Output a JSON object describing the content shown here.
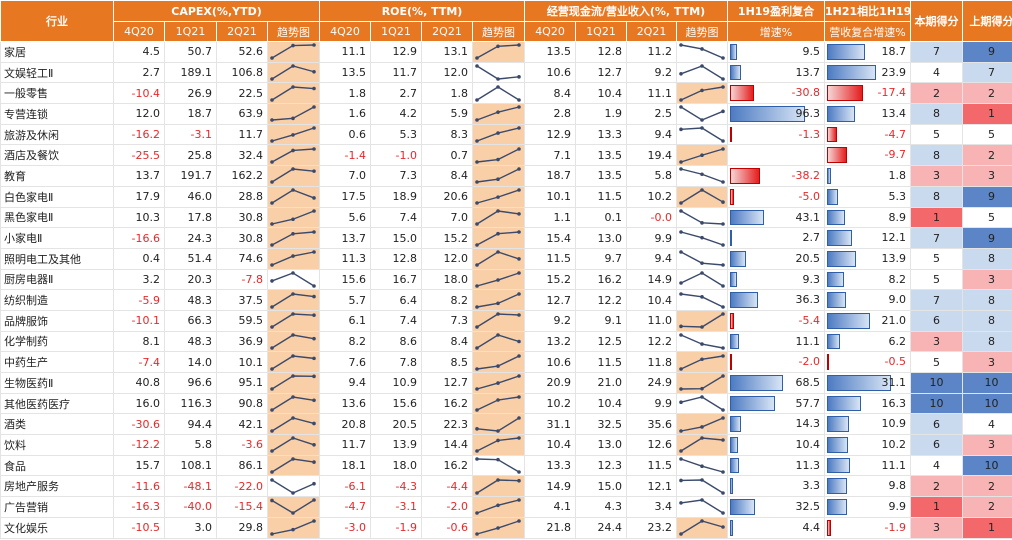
{
  "headers": {
    "industry": "行业",
    "capex": "CAPEX(%,YTD)",
    "roe": "ROE(%, TTM)",
    "cash": "经营现金流/营业收入(%, TTM)",
    "g19": [
      "1H19盈利复合",
      "增速%"
    ],
    "rev": [
      "1H21相比1H19",
      "营收复合增速%"
    ],
    "score_now": "本期得分",
    "score_prev": "上期得分",
    "periods_capex": [
      "4Q20",
      "1Q21",
      "2Q21",
      "趋势图"
    ],
    "periods_roe": [
      "4Q20",
      "1Q21",
      "2Q21",
      "趋势图"
    ],
    "periods_cash": [
      "4Q20",
      "1Q21",
      "2Q21",
      "趋势图"
    ]
  },
  "colors": {
    "header": "#E87722",
    "negative_text": "#e8282b",
    "spark_highlight": "#F9CFA8",
    "spark_line": "#3B4A6B",
    "bar_positive": "#4D7BC2",
    "bar_negative": "#E51E1E",
    "score_scale": [
      "#F2686B",
      "#F8B3B5",
      "#FFFFFF",
      "#C9D9EE",
      "#5B85C6"
    ]
  },
  "chart_data": {
    "type": "table",
    "columns": [
      "行业",
      "CAPEX 4Q20",
      "CAPEX 1Q21",
      "CAPEX 2Q21",
      "ROE 4Q20",
      "ROE 1Q21",
      "ROE 2Q21",
      "经营现金流/营收 4Q20",
      "经营现金流/营收 1Q21",
      "经营现金流/营收 2Q21",
      "1H19盈利复合增速%",
      "1H21相比1H19营收复合增速%",
      "本期得分",
      "上期得分"
    ],
    "rows": [
      {
        "name": "家居",
        "capex": [
          "4.5",
          "50.7",
          "52.6"
        ],
        "roe": [
          "11.1",
          "12.9",
          "13.1"
        ],
        "cash": [
          "13.5",
          "12.8",
          "11.2"
        ],
        "g19": "9.5",
        "rev": "18.7",
        "score_now": "7",
        "score_prev": "9"
      },
      {
        "name": "文娱轻工Ⅱ",
        "capex": [
          "2.7",
          "189.1",
          "106.8"
        ],
        "roe": [
          "13.5",
          "11.7",
          "12.0"
        ],
        "cash": [
          "10.6",
          "12.7",
          "9.2"
        ],
        "g19": "13.7",
        "rev": "23.9",
        "score_now": "4",
        "score_prev": "7"
      },
      {
        "name": "一般零售",
        "capex": [
          "-10.4",
          "26.9",
          "22.5"
        ],
        "roe": [
          "1.8",
          "2.7",
          "1.8"
        ],
        "cash": [
          "8.4",
          "10.4",
          "11.1"
        ],
        "g19": "-30.8",
        "rev": "-17.4",
        "score_now": "2",
        "score_prev": "2"
      },
      {
        "name": "专营连锁",
        "capex": [
          "12.0",
          "18.7",
          "63.9"
        ],
        "roe": [
          "1.6",
          "4.2",
          "5.9"
        ],
        "cash": [
          "2.8",
          "1.9",
          "2.5"
        ],
        "g19": "96.3",
        "rev": "13.4",
        "score_now": "8",
        "score_prev": "1"
      },
      {
        "name": "旅游及休闲",
        "capex": [
          "-16.2",
          "-3.1",
          "11.7"
        ],
        "roe": [
          "0.6",
          "5.3",
          "8.3"
        ],
        "cash": [
          "12.9",
          "13.3",
          "9.4"
        ],
        "g19": "-1.3",
        "rev": "-4.7",
        "score_now": "5",
        "score_prev": "5"
      },
      {
        "name": "酒店及餐饮",
        "capex": [
          "-25.5",
          "25.8",
          "32.4"
        ],
        "roe": [
          "-1.4",
          "-1.0",
          "0.7"
        ],
        "cash": [
          "7.1",
          "13.5",
          "19.4"
        ],
        "g19": "",
        "rev": "-9.7",
        "score_now": "8",
        "score_prev": "2"
      },
      {
        "name": "教育",
        "capex": [
          "13.7",
          "191.7",
          "162.2"
        ],
        "roe": [
          "7.0",
          "7.3",
          "8.4"
        ],
        "cash": [
          "18.7",
          "13.5",
          "5.8"
        ],
        "g19": "-38.2",
        "rev": "1.8",
        "score_now": "3",
        "score_prev": "3"
      },
      {
        "name": "白色家电Ⅱ",
        "capex": [
          "17.9",
          "46.0",
          "28.8"
        ],
        "roe": [
          "17.5",
          "18.9",
          "20.6"
        ],
        "cash": [
          "10.1",
          "11.5",
          "10.2"
        ],
        "g19": "-5.0",
        "rev": "5.3",
        "score_now": "8",
        "score_prev": "9"
      },
      {
        "name": "黑色家电Ⅱ",
        "capex": [
          "10.3",
          "17.8",
          "30.8"
        ],
        "roe": [
          "5.6",
          "7.4",
          "7.0"
        ],
        "cash": [
          "1.1",
          "0.1",
          "-0.0"
        ],
        "g19": "43.1",
        "rev": "8.9",
        "score_now": "1",
        "score_prev": "5"
      },
      {
        "name": "小家电Ⅱ",
        "capex": [
          "-16.6",
          "24.3",
          "30.8"
        ],
        "roe": [
          "13.7",
          "15.0",
          "15.2"
        ],
        "cash": [
          "15.4",
          "13.0",
          "9.9"
        ],
        "g19": "2.7",
        "rev": "12.1",
        "score_now": "7",
        "score_prev": "9"
      },
      {
        "name": "照明电工及其他",
        "capex": [
          "0.4",
          "51.4",
          "74.6"
        ],
        "roe": [
          "11.3",
          "12.8",
          "12.0"
        ],
        "cash": [
          "11.5",
          "9.7",
          "9.4"
        ],
        "g19": "20.5",
        "rev": "13.9",
        "score_now": "5",
        "score_prev": "8"
      },
      {
        "name": "厨房电器Ⅱ",
        "capex": [
          "3.2",
          "20.3",
          "-7.8"
        ],
        "roe": [
          "15.6",
          "16.7",
          "18.0"
        ],
        "cash": [
          "15.2",
          "16.2",
          "14.9"
        ],
        "g19": "9.3",
        "rev": "8.2",
        "score_now": "5",
        "score_prev": "3"
      },
      {
        "name": "纺织制造",
        "capex": [
          "-5.9",
          "48.3",
          "37.5"
        ],
        "roe": [
          "5.7",
          "6.4",
          "8.2"
        ],
        "cash": [
          "12.7",
          "12.2",
          "10.4"
        ],
        "g19": "36.3",
        "rev": "9.0",
        "score_now": "7",
        "score_prev": "8"
      },
      {
        "name": "品牌服饰",
        "capex": [
          "-10.1",
          "66.3",
          "59.5"
        ],
        "roe": [
          "6.1",
          "7.4",
          "7.3"
        ],
        "cash": [
          "9.2",
          "9.1",
          "11.0"
        ],
        "g19": "-5.4",
        "rev": "21.0",
        "score_now": "6",
        "score_prev": "8"
      },
      {
        "name": "化学制药",
        "capex": [
          "8.1",
          "48.3",
          "36.9"
        ],
        "roe": [
          "8.2",
          "8.6",
          "8.4"
        ],
        "cash": [
          "13.2",
          "12.5",
          "12.2"
        ],
        "g19": "11.1",
        "rev": "6.2",
        "score_now": "3",
        "score_prev": "8"
      },
      {
        "name": "中药生产",
        "capex": [
          "-7.4",
          "14.0",
          "10.1"
        ],
        "roe": [
          "7.6",
          "7.8",
          "8.5"
        ],
        "cash": [
          "10.6",
          "11.5",
          "11.8"
        ],
        "g19": "-2.0",
        "rev": "-0.5",
        "score_now": "5",
        "score_prev": "3"
      },
      {
        "name": "生物医药Ⅱ",
        "capex": [
          "40.8",
          "96.6",
          "95.1"
        ],
        "roe": [
          "9.4",
          "10.9",
          "12.7"
        ],
        "cash": [
          "20.9",
          "21.0",
          "24.9"
        ],
        "g19": "68.5",
        "rev": "31.1",
        "score_now": "10",
        "score_prev": "10"
      },
      {
        "name": "其他医药医疗",
        "capex": [
          "16.0",
          "116.3",
          "90.8"
        ],
        "roe": [
          "13.6",
          "15.6",
          "16.2"
        ],
        "cash": [
          "10.2",
          "10.4",
          "9.9"
        ],
        "g19": "57.7",
        "rev": "16.3",
        "score_now": "10",
        "score_prev": "10"
      },
      {
        "name": "酒类",
        "capex": [
          "-30.6",
          "94.4",
          "42.1"
        ],
        "roe": [
          "20.8",
          "20.5",
          "22.3"
        ],
        "cash": [
          "31.1",
          "32.5",
          "35.6"
        ],
        "g19": "14.3",
        "rev": "10.9",
        "score_now": "6",
        "score_prev": "4"
      },
      {
        "name": "饮料",
        "capex": [
          "-12.2",
          "5.8",
          "-3.6"
        ],
        "roe": [
          "11.7",
          "13.9",
          "14.4"
        ],
        "cash": [
          "10.4",
          "13.0",
          "12.6"
        ],
        "g19": "10.4",
        "rev": "10.2",
        "score_now": "6",
        "score_prev": "3"
      },
      {
        "name": "食品",
        "capex": [
          "15.7",
          "108.1",
          "86.1"
        ],
        "roe": [
          "18.1",
          "18.0",
          "16.2"
        ],
        "cash": [
          "13.3",
          "12.3",
          "11.5"
        ],
        "g19": "11.3",
        "rev": "11.1",
        "score_now": "4",
        "score_prev": "10"
      },
      {
        "name": "房地产服务",
        "capex": [
          "-11.6",
          "-48.1",
          "-22.0"
        ],
        "roe": [
          "-6.1",
          "-4.3",
          "-4.4"
        ],
        "cash": [
          "14.9",
          "15.0",
          "12.1"
        ],
        "g19": "3.3",
        "rev": "9.8",
        "score_now": "2",
        "score_prev": "2"
      },
      {
        "name": "广告营销",
        "capex": [
          "-16.3",
          "-40.0",
          "-15.4"
        ],
        "roe": [
          "-4.7",
          "-3.1",
          "-2.0"
        ],
        "cash": [
          "4.1",
          "4.3",
          "3.4"
        ],
        "g19": "32.5",
        "rev": "9.9",
        "score_now": "1",
        "score_prev": "2"
      },
      {
        "name": "文化娱乐",
        "capex": [
          "-10.5",
          "3.0",
          "29.8"
        ],
        "roe": [
          "-3.0",
          "-1.9",
          "-0.6"
        ],
        "cash": [
          "21.8",
          "24.4",
          "23.2"
        ],
        "g19": "4.4",
        "rev": "-1.9",
        "score_now": "3",
        "score_prev": "1"
      }
    ]
  }
}
